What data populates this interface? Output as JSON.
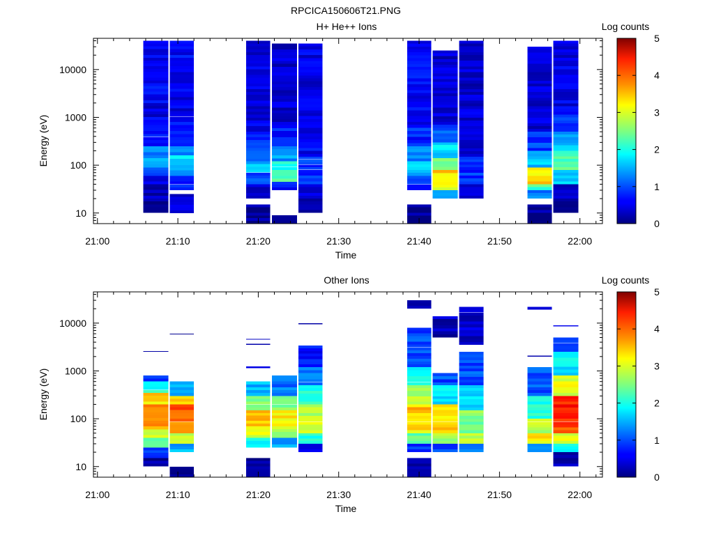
{
  "figure_title": "RPCICA150606T21.PNG",
  "chart_data": [
    {
      "type": "heatmap",
      "title": "H+ He++ Ions",
      "xlabel": "Time",
      "ylabel": "Energy (eV)",
      "x_ticks": [
        "21:00",
        "21:10",
        "21:20",
        "21:30",
        "21:40",
        "21:50",
        "22:00"
      ],
      "y_ticks": [
        "10",
        "100",
        "1000",
        "10000"
      ],
      "y_scale": "log",
      "ylim": [
        6,
        45000
      ],
      "colorbar": {
        "label": "Log counts",
        "range": [
          0,
          5
        ],
        "ticks": [
          "0",
          "1",
          "2",
          "3",
          "4",
          "5"
        ]
      },
      "columns": [
        {
          "start": "21:05.7",
          "end": "21:08.8",
          "emin": 10,
          "emax": 40000,
          "bands": [
            [
              10,
              20,
              0.2
            ],
            [
              20,
              40,
              0.3
            ],
            [
              40,
              60,
              0.5
            ],
            [
              60,
              90,
              1.0
            ],
            [
              90,
              140,
              1.5
            ],
            [
              140,
              250,
              1.3
            ],
            [
              250,
              600,
              0.8
            ],
            [
              600,
              2000,
              0.5
            ],
            [
              2000,
              40000,
              0.6
            ]
          ]
        },
        {
          "start": "21:09.0",
          "end": "21:12.0",
          "emin": 10,
          "emax": 40000,
          "bands": [
            [
              10,
              25,
              0.5
            ],
            [
              30,
              60,
              0.7
            ],
            [
              60,
              100,
              1.3
            ],
            [
              100,
              160,
              1.8
            ],
            [
              160,
              250,
              1.3
            ],
            [
              250,
              800,
              0.7
            ],
            [
              800,
              3000,
              0.5
            ],
            [
              3000,
              40000,
              0.6
            ]
          ]
        },
        {
          "start": "21:18.5",
          "end": "21:21.5",
          "emin": 6,
          "emax": 40000,
          "bands": [
            [
              6,
              15,
              0.1
            ],
            [
              20,
              40,
              0.3
            ],
            [
              40,
              70,
              1.0
            ],
            [
              70,
              120,
              1.6
            ],
            [
              120,
              200,
              1.2
            ],
            [
              200,
              500,
              0.8
            ],
            [
              500,
              40000,
              0.5
            ]
          ]
        },
        {
          "start": "21:21.7",
          "end": "21:24.8",
          "emin": 6,
          "emax": 35000,
          "bands": [
            [
              6,
              9,
              0.2
            ],
            [
              30,
              45,
              0.7
            ],
            [
              45,
              80,
              2.2
            ],
            [
              80,
              120,
              2.0
            ],
            [
              120,
              250,
              1.4
            ],
            [
              250,
              800,
              0.7
            ],
            [
              800,
              35000,
              0.4
            ]
          ]
        },
        {
          "start": "21:25.0",
          "end": "21:28.0",
          "emin": 10,
          "emax": 35000,
          "bands": [
            [
              10,
              20,
              0.2
            ],
            [
              20,
              40,
              0.4
            ],
            [
              40,
              80,
              0.8
            ],
            [
              80,
              150,
              0.9
            ],
            [
              150,
              400,
              0.6
            ],
            [
              400,
              35000,
              0.5
            ]
          ]
        },
        {
          "start": "21:38.5",
          "end": "21:41.5",
          "emin": 6,
          "emax": 40000,
          "bands": [
            [
              6,
              15,
              0.1
            ],
            [
              30,
              60,
              0.8
            ],
            [
              60,
              120,
              1.6
            ],
            [
              120,
              250,
              1.2
            ],
            [
              250,
              700,
              0.8
            ],
            [
              700,
              40000,
              0.6
            ]
          ]
        },
        {
          "start": "21:41.7",
          "end": "21:44.8",
          "emin": 20,
          "emax": 25000,
          "bands": [
            [
              20,
              30,
              1.5
            ],
            [
              30,
              50,
              3.0
            ],
            [
              50,
              80,
              3.3
            ],
            [
              80,
              140,
              2.5
            ],
            [
              140,
              300,
              1.7
            ],
            [
              300,
              700,
              1.0
            ],
            [
              700,
              25000,
              0.4
            ]
          ]
        },
        {
          "start": "21:45.0",
          "end": "21:48.0",
          "emin": 20,
          "emax": 40000,
          "bands": [
            [
              20,
              40,
              0.4
            ],
            [
              40,
              70,
              0.9
            ],
            [
              70,
              150,
              0.8
            ],
            [
              150,
              500,
              0.5
            ],
            [
              500,
              40000,
              0.4
            ]
          ]
        },
        {
          "start": "21:53.5",
          "end": "21:56.5",
          "emin": 6,
          "emax": 30000,
          "bands": [
            [
              6,
              15,
              0.1
            ],
            [
              20,
              30,
              1.2
            ],
            [
              30,
              40,
              2.2
            ],
            [
              40,
              60,
              3.5
            ],
            [
              60,
              90,
              3.0
            ],
            [
              90,
              200,
              1.6
            ],
            [
              200,
              500,
              0.9
            ],
            [
              500,
              30000,
              0.4
            ]
          ]
        },
        {
          "start": "21:56.7",
          "end": "21:59.8",
          "emin": 10,
          "emax": 40000,
          "bands": [
            [
              10,
              20,
              0.1
            ],
            [
              20,
              40,
              0.3
            ],
            [
              40,
              80,
              1.6
            ],
            [
              80,
              200,
              2.3
            ],
            [
              200,
              500,
              1.5
            ],
            [
              500,
              1500,
              0.8
            ],
            [
              1500,
              40000,
              0.5
            ]
          ]
        }
      ]
    },
    {
      "type": "heatmap",
      "title": "Other Ions",
      "xlabel": "Time",
      "ylabel": "Energy (eV)",
      "x_ticks": [
        "21:00",
        "21:10",
        "21:20",
        "21:30",
        "21:40",
        "21:50",
        "22:00"
      ],
      "y_ticks": [
        "10",
        "100",
        "1000",
        "10000"
      ],
      "y_scale": "log",
      "ylim": [
        6,
        45000
      ],
      "colorbar": {
        "label": "Log counts",
        "range": [
          0,
          5
        ],
        "ticks": [
          "0",
          "1",
          "2",
          "3",
          "4",
          "5"
        ]
      },
      "columns": [
        {
          "start": "21:05.7",
          "end": "21:08.8",
          "emin": 10,
          "emax": 2600,
          "bands": [
            [
              10,
              15,
              0.1
            ],
            [
              15,
              25,
              1.0
            ],
            [
              25,
              40,
              2.2
            ],
            [
              40,
              60,
              3.0
            ],
            [
              60,
              120,
              3.6
            ],
            [
              120,
              200,
              3.8
            ],
            [
              200,
              350,
              3.3
            ],
            [
              350,
              600,
              2.0
            ],
            [
              600,
              800,
              0.8
            ],
            [
              2500,
              2600,
              0.3
            ]
          ]
        },
        {
          "start": "21:09.0",
          "end": "21:12.0",
          "emin": 6,
          "emax": 6000,
          "bands": [
            [
              6,
              10,
              0.1
            ],
            [
              20,
              30,
              1.5
            ],
            [
              30,
              50,
              2.8
            ],
            [
              50,
              100,
              3.7
            ],
            [
              100,
              200,
              3.9
            ],
            [
              200,
              300,
              3.3
            ],
            [
              300,
              600,
              1.6
            ],
            [
              5800,
              6000,
              0.3
            ]
          ]
        },
        {
          "start": "21:18.5",
          "end": "21:21.5",
          "emin": 6,
          "emax": 4700,
          "bands": [
            [
              6,
              15,
              0.1
            ],
            [
              25,
              40,
              1.8
            ],
            [
              40,
              70,
              3.0
            ],
            [
              70,
              150,
              3.4
            ],
            [
              150,
              300,
              2.6
            ],
            [
              300,
              600,
              1.5
            ],
            [
              1150,
              1250,
              0.3
            ],
            [
              3500,
              3700,
              0.3
            ],
            [
              4500,
              4700,
              0.3
            ]
          ]
        },
        {
          "start": "21:21.7",
          "end": "21:24.8",
          "emin": 25,
          "emax": 800,
          "bands": [
            [
              25,
              40,
              1.5
            ],
            [
              40,
              70,
              2.7
            ],
            [
              70,
              150,
              3.2
            ],
            [
              150,
              300,
              2.5
            ],
            [
              300,
              800,
              1.2
            ]
          ]
        },
        {
          "start": "21:25.0",
          "end": "21:28.0",
          "emin": 20,
          "emax": 10000,
          "bands": [
            [
              20,
              30,
              0.5
            ],
            [
              30,
              50,
              2.0
            ],
            [
              50,
              100,
              3.0
            ],
            [
              100,
              200,
              2.8
            ],
            [
              200,
              500,
              2.0
            ],
            [
              500,
              1200,
              1.3
            ],
            [
              1200,
              3400,
              0.7
            ],
            [
              9500,
              10000,
              0.3
            ]
          ]
        },
        {
          "start": "21:38.5",
          "end": "21:41.5",
          "emin": 6,
          "emax": 30000,
          "bands": [
            [
              6,
              15,
              0.1
            ],
            [
              20,
              30,
              0.8
            ],
            [
              30,
              50,
              2.3
            ],
            [
              50,
              100,
              3.2
            ],
            [
              100,
              200,
              3.4
            ],
            [
              200,
              500,
              2.8
            ],
            [
              500,
              1200,
              2.0
            ],
            [
              1200,
              8000,
              1.0
            ],
            [
              20000,
              30000,
              0.3
            ]
          ]
        },
        {
          "start": "21:41.7",
          "end": "21:44.8",
          "emin": 20,
          "emax": 14000,
          "bands": [
            [
              20,
              30,
              1.0
            ],
            [
              30,
              50,
              2.7
            ],
            [
              50,
              100,
              3.4
            ],
            [
              100,
              200,
              3.3
            ],
            [
              200,
              500,
              1.8
            ],
            [
              500,
              900,
              1.0
            ],
            [
              5000,
              14000,
              0.3
            ]
          ]
        },
        {
          "start": "21:45.0",
          "end": "21:48.0",
          "emin": 20,
          "emax": 22000,
          "bands": [
            [
              20,
              30,
              1.2
            ],
            [
              30,
              50,
              2.8
            ],
            [
              50,
              150,
              2.5
            ],
            [
              150,
              500,
              1.7
            ],
            [
              500,
              2500,
              1.0
            ],
            [
              3500,
              22000,
              0.4
            ]
          ]
        },
        {
          "start": "21:53.5",
          "end": "21:56.5",
          "emin": 20,
          "emax": 22000,
          "bands": [
            [
              20,
              30,
              1.2
            ],
            [
              30,
              50,
              3.2
            ],
            [
              50,
              100,
              2.8
            ],
            [
              100,
              300,
              2.0
            ],
            [
              300,
              1200,
              1.0
            ],
            [
              2000,
              2100,
              0.3
            ],
            [
              19000,
              22000,
              0.3
            ]
          ]
        },
        {
          "start": "21:56.7",
          "end": "21:59.8",
          "emin": 10,
          "emax": 9000,
          "bands": [
            [
              10,
              20,
              0.3
            ],
            [
              20,
              30,
              1.8
            ],
            [
              30,
              50,
              3.0
            ],
            [
              50,
              100,
              4.0
            ],
            [
              100,
              300,
              4.2
            ],
            [
              300,
              800,
              3.0
            ],
            [
              800,
              2500,
              1.8
            ],
            [
              2500,
              5000,
              0.8
            ],
            [
              8500,
              9000,
              0.3
            ]
          ]
        }
      ]
    }
  ]
}
